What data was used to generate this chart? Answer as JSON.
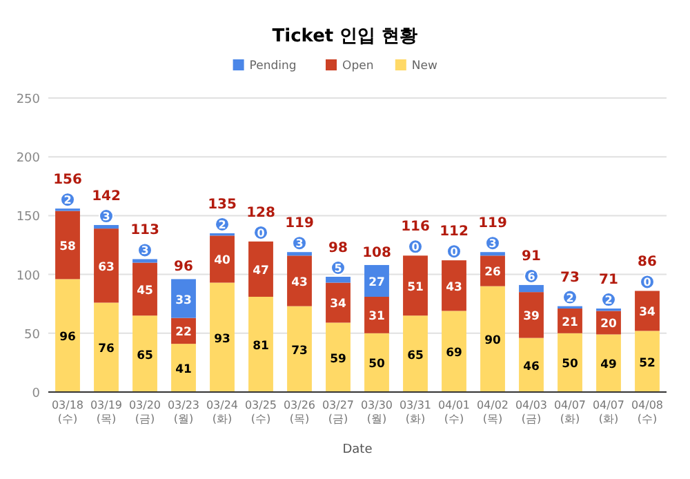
{
  "chart_data": {
    "type": "bar",
    "title": "Ticket 인입 현황",
    "xlabel": "Date",
    "stacked": true,
    "data_labels": true,
    "grid": "y",
    "legend": "top",
    "categories": [
      "03/18 (수)",
      "03/19 (목)",
      "03/20 (금)",
      "03/23 (월)",
      "03/24 (화)",
      "03/25 (수)",
      "03/26 (목)",
      "03/27 (금)",
      "03/30 (월)",
      "03/31 (화)",
      "04/01 (수)",
      "04/02 (목)",
      "04/03 (금)",
      "04/07 (화)",
      "04/07 (화)",
      "04/08 (수)"
    ],
    "series": [
      {
        "name": "New",
        "color": "#ffd966",
        "values": [
          96,
          76,
          65,
          41,
          93,
          81,
          73,
          59,
          50,
          65,
          69,
          90,
          46,
          50,
          49,
          52
        ]
      },
      {
        "name": "Open",
        "color": "#cc4125",
        "values": [
          58,
          63,
          45,
          22,
          40,
          47,
          43,
          34,
          31,
          51,
          43,
          26,
          39,
          21,
          20,
          34
        ]
      },
      {
        "name": "Pending",
        "color": "#4a86e8",
        "values": [
          2,
          3,
          3,
          33,
          2,
          0,
          3,
          5,
          27,
          0,
          0,
          3,
          6,
          2,
          2,
          0
        ]
      }
    ],
    "totals": [
      "156",
      "142",
      "113",
      "96",
      "135",
      "128",
      "119",
      "98",
      "108",
      "116",
      "112",
      "119",
      "91",
      "73",
      "71",
      "86"
    ],
    "ylim": [
      0,
      250
    ],
    "yticks": [
      0,
      50,
      100,
      150,
      200,
      250
    ]
  }
}
